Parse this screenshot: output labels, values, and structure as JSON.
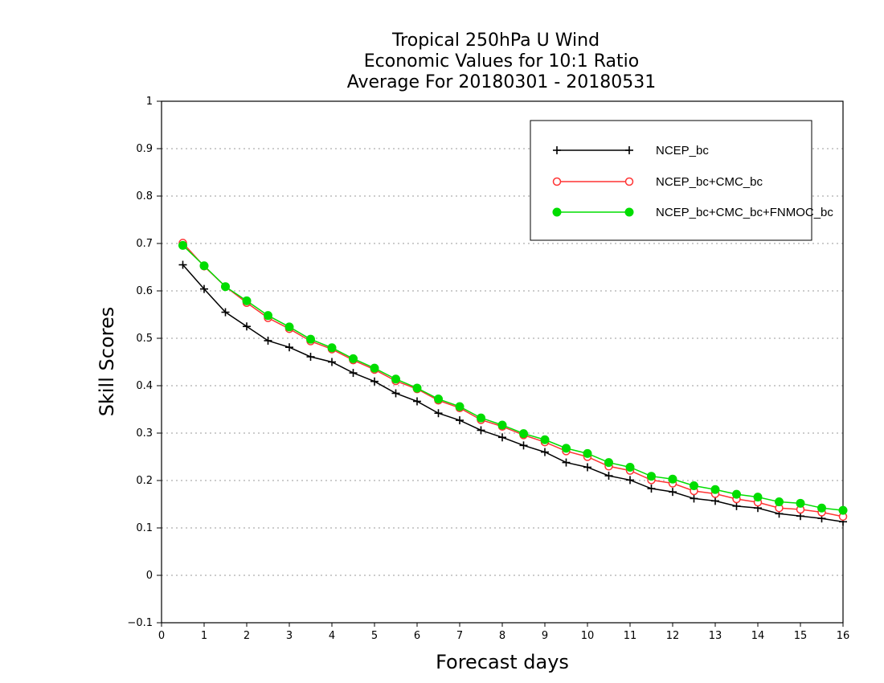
{
  "chart_data": {
    "type": "line",
    "title": [
      "Tropical 250hPa U Wind",
      "Economic Values for 10:1 Ratio",
      "Average For 20180301 - 20180531"
    ],
    "xlabel": "Forecast days",
    "ylabel": "Skill Scores",
    "xlim": [
      0,
      16
    ],
    "ylim": [
      -0.1,
      1
    ],
    "xticks": [
      "0",
      "1",
      "2",
      "3",
      "4",
      "5",
      "6",
      "7",
      "8",
      "9",
      "10",
      "11",
      "12",
      "13",
      "14",
      "15",
      "16"
    ],
    "yticks": [
      "−0.1",
      "0",
      "0.1",
      "0.2",
      "0.3",
      "0.4",
      "0.5",
      "0.6",
      "0.7",
      "0.8",
      "0.9",
      "1"
    ],
    "grid": "horizontal dotted",
    "legend_position": "top-right",
    "x": [
      0.5,
      1,
      1.5,
      2,
      2.5,
      3,
      3.5,
      4,
      4.5,
      5,
      5.5,
      6,
      6.5,
      7,
      7.5,
      8,
      8.5,
      9,
      9.5,
      10,
      10.5,
      11,
      11.5,
      12,
      12.5,
      13,
      13.5,
      14,
      14.5,
      15,
      15.5,
      16
    ],
    "series": [
      {
        "name": "NCEP_bc",
        "color": "#000000",
        "marker": "plus",
        "values": [
          0.655,
          0.604,
          0.555,
          0.525,
          0.495,
          0.481,
          0.461,
          0.45,
          0.427,
          0.409,
          0.384,
          0.367,
          0.342,
          0.327,
          0.306,
          0.291,
          0.274,
          0.26,
          0.238,
          0.228,
          0.21,
          0.201,
          0.183,
          0.176,
          0.162,
          0.157,
          0.146,
          0.142,
          0.13,
          0.125,
          0.12,
          0.113
        ]
      },
      {
        "name": "NCEP_bc+CMC_bc",
        "color": "#ff3333",
        "marker": "open-circle",
        "values": [
          0.701,
          0.652,
          0.609,
          0.575,
          0.543,
          0.52,
          0.494,
          0.477,
          0.454,
          0.434,
          0.41,
          0.393,
          0.369,
          0.353,
          0.328,
          0.314,
          0.296,
          0.281,
          0.262,
          0.25,
          0.23,
          0.221,
          0.201,
          0.194,
          0.178,
          0.172,
          0.161,
          0.154,
          0.142,
          0.139,
          0.133,
          0.124
        ]
      },
      {
        "name": "NCEP_bc+CMC_bc+FNMOC_bc",
        "color": "#00dd00",
        "marker": "filled-circle",
        "values": [
          0.696,
          0.653,
          0.609,
          0.579,
          0.548,
          0.524,
          0.498,
          0.48,
          0.457,
          0.437,
          0.414,
          0.395,
          0.372,
          0.356,
          0.332,
          0.317,
          0.299,
          0.286,
          0.268,
          0.257,
          0.238,
          0.228,
          0.209,
          0.203,
          0.189,
          0.181,
          0.171,
          0.165,
          0.155,
          0.152,
          0.142,
          0.137
        ]
      }
    ]
  }
}
